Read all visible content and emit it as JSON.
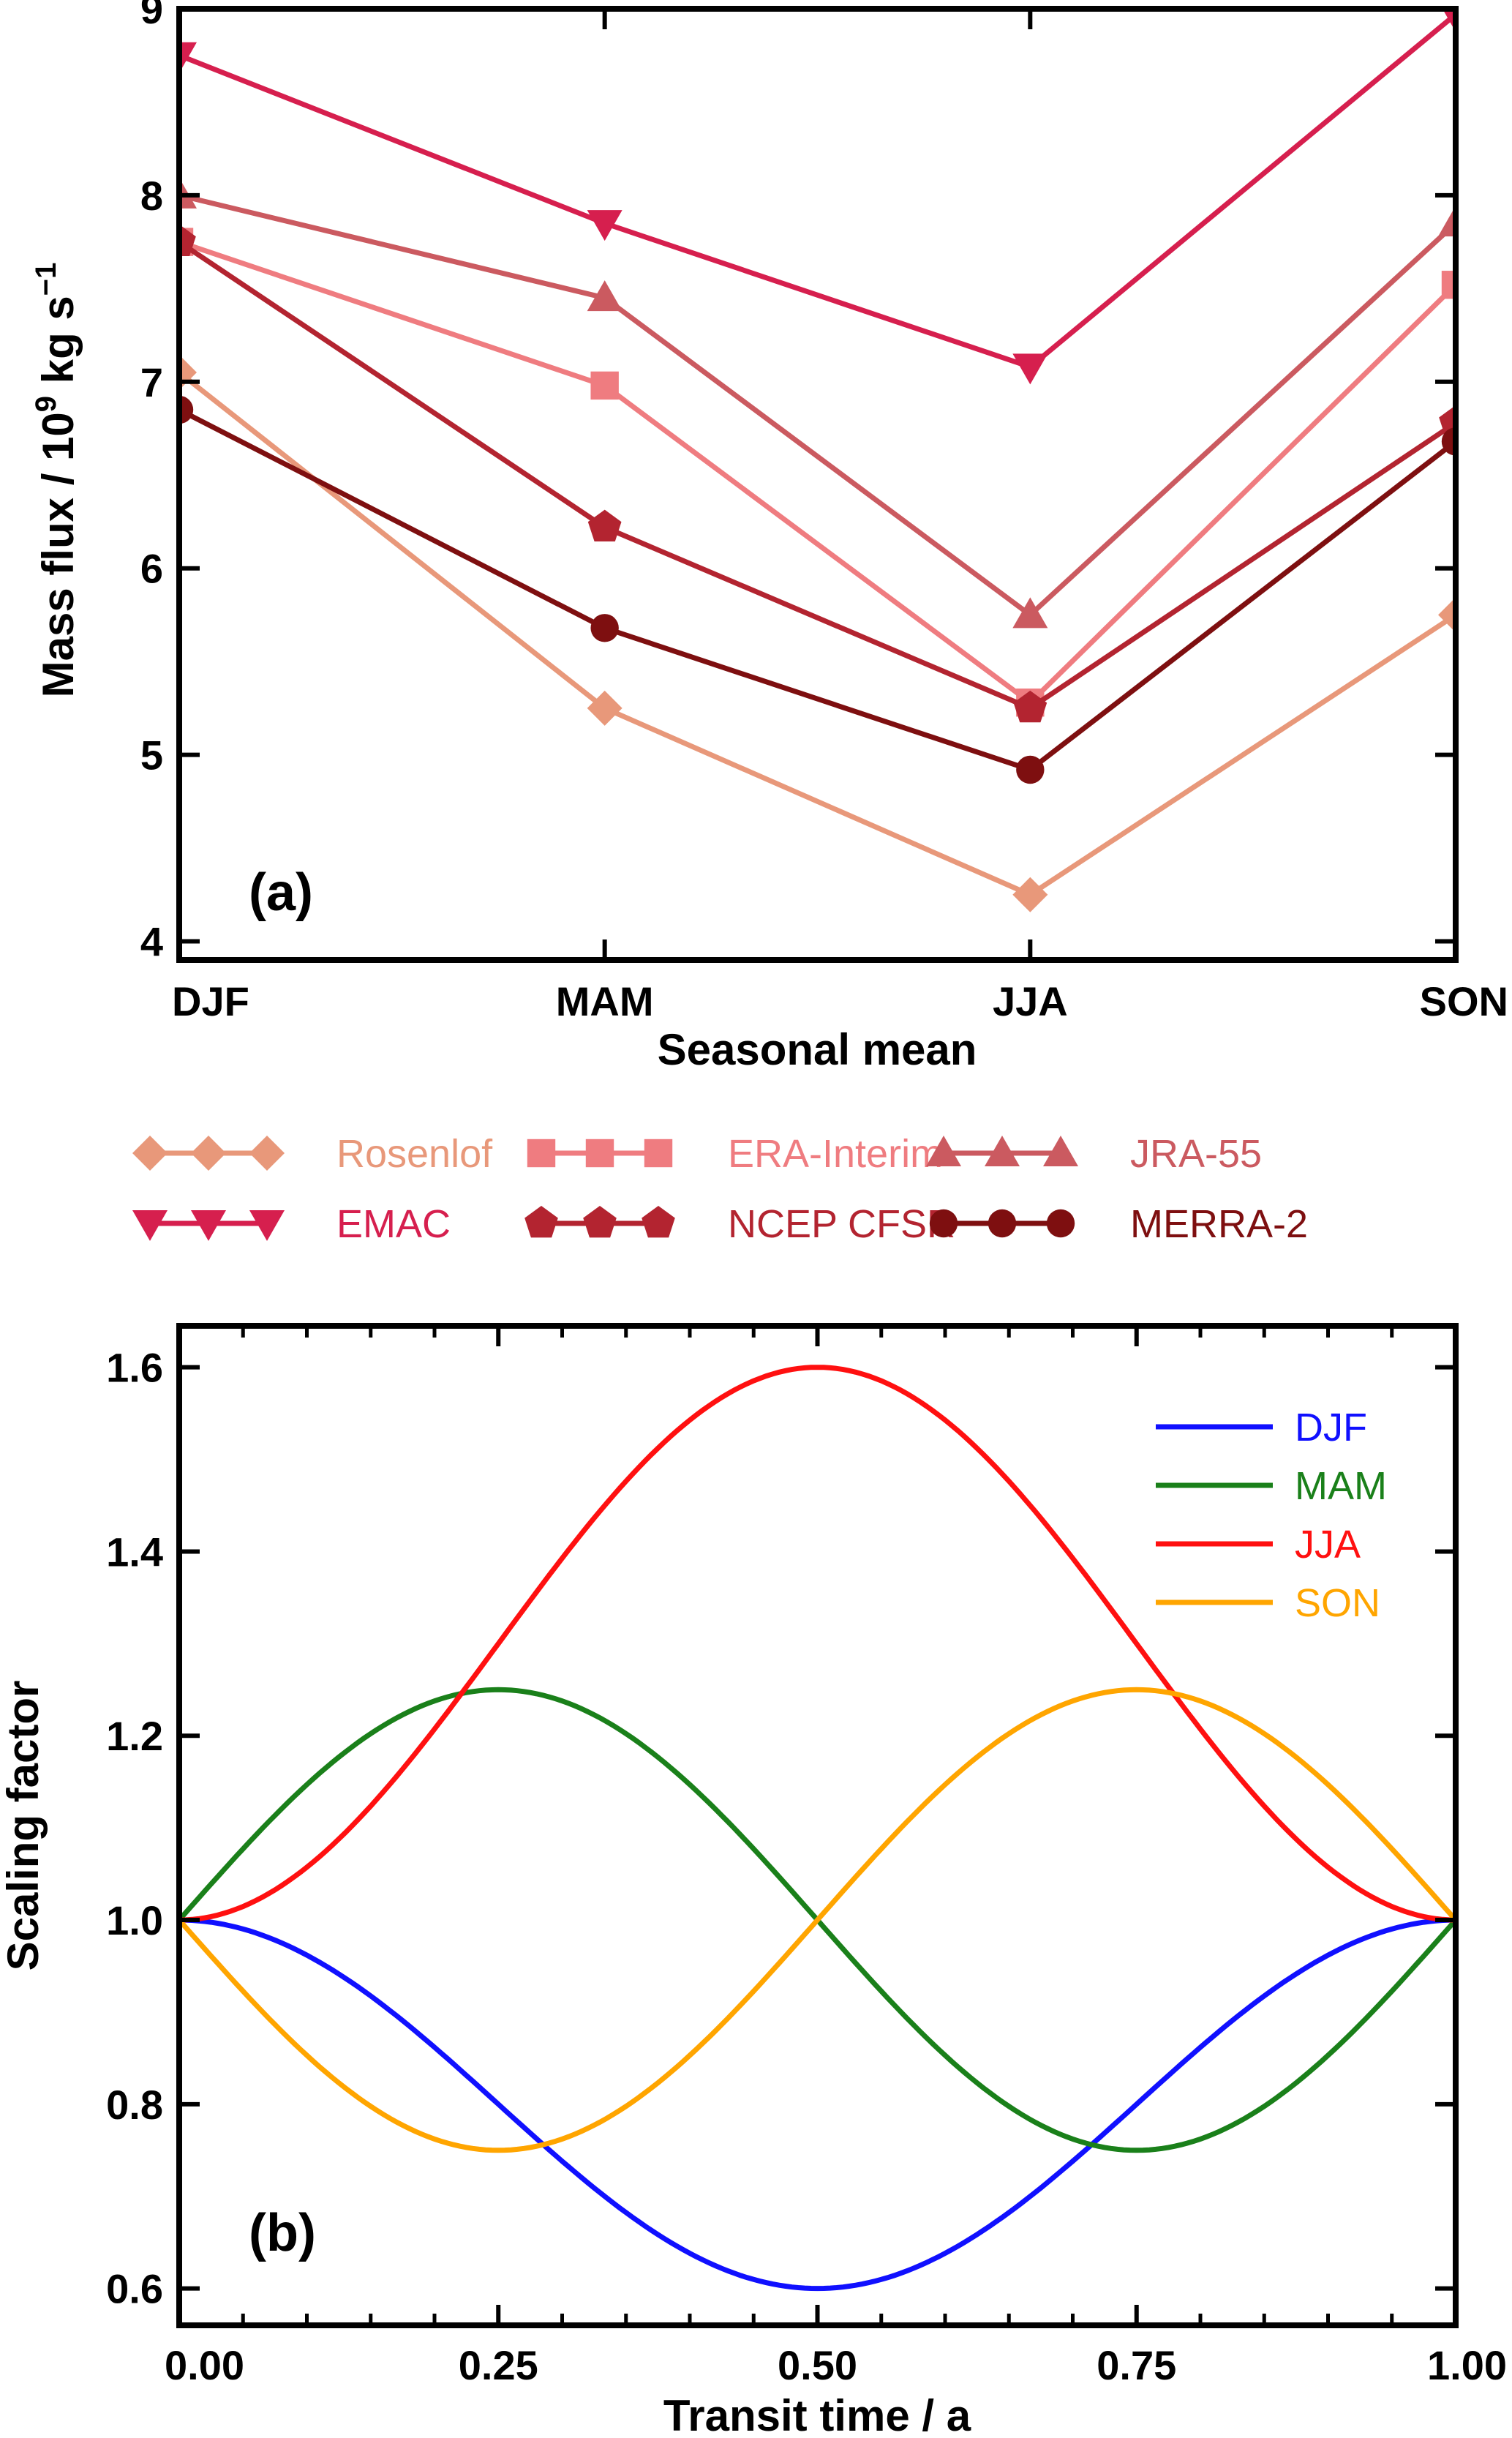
{
  "chart_data": [
    {
      "type": "line",
      "panel_label": "(a)",
      "xlabel": "Seasonal mean",
      "ylabel_main": "Mass flux / 10",
      "ylabel_exp": "9",
      "ylabel_unit": " kg s",
      "ylabel_unit_exp": "−1",
      "categories": [
        "DJF",
        "MAM",
        "JJA",
        "SON"
      ],
      "ylim": [
        3.9,
        9.0
      ],
      "yticks": [
        4,
        5,
        6,
        7,
        8,
        9
      ],
      "grid": false,
      "legend_position": "below",
      "series": [
        {
          "name": "Rosenlof",
          "values": [
            7.05,
            5.25,
            4.25,
            5.75
          ],
          "color": "#E8987A",
          "marker": "diamond"
        },
        {
          "name": "ERA-Interim",
          "values": [
            7.75,
            6.98,
            5.28,
            7.52
          ],
          "color": "#EF7C80",
          "marker": "square"
        },
        {
          "name": "JRA-55",
          "values": [
            8.0,
            7.45,
            5.75,
            7.85
          ],
          "color": "#CB5A60",
          "marker": "triangle-up"
        },
        {
          "name": "EMAC",
          "values": [
            8.75,
            7.85,
            7.08,
            8.97
          ],
          "color": "#D61F4E",
          "marker": "triangle-down"
        },
        {
          "name": "NCEP CFSR",
          "values": [
            7.75,
            6.22,
            5.25,
            6.78
          ],
          "color": "#B32430",
          "marker": "pentagon"
        },
        {
          "name": "MERRA-2",
          "values": [
            6.85,
            5.68,
            4.92,
            6.68
          ],
          "color": "#7E0F10",
          "marker": "circle"
        }
      ]
    },
    {
      "type": "line",
      "panel_label": "(b)",
      "xlabel": "Transit time / a",
      "ylabel": "Scaling factor",
      "xlim": [
        0,
        1
      ],
      "ylim": [
        0.56,
        1.645
      ],
      "xticks": [
        "0.00",
        "0.25",
        "0.50",
        "0.75",
        "1.00"
      ],
      "yticks": [
        "0.6",
        "0.8",
        "1.0",
        "1.2",
        "1.4",
        "1.6"
      ],
      "grid": false,
      "legend_position": "top-right",
      "series": [
        {
          "name": "DJF",
          "color": "#1010FF",
          "formula": "1 - 0.2*(1 - cos(2*pi*t))",
          "min": 0.6,
          "max": 1.0
        },
        {
          "name": "MAM",
          "color": "#1A801A",
          "formula": "1 + 0.25*sin(2*pi*t)",
          "min": 0.75,
          "max": 1.25
        },
        {
          "name": "JJA",
          "color": "#FF1010",
          "formula": "1 + 0.3*(1 - cos(2*pi*t))",
          "min": 1.0,
          "max": 1.6
        },
        {
          "name": "SON",
          "color": "#FFA500",
          "formula": "1 - 0.25*sin(2*pi*t)",
          "min": 0.75,
          "max": 1.25
        }
      ]
    }
  ]
}
